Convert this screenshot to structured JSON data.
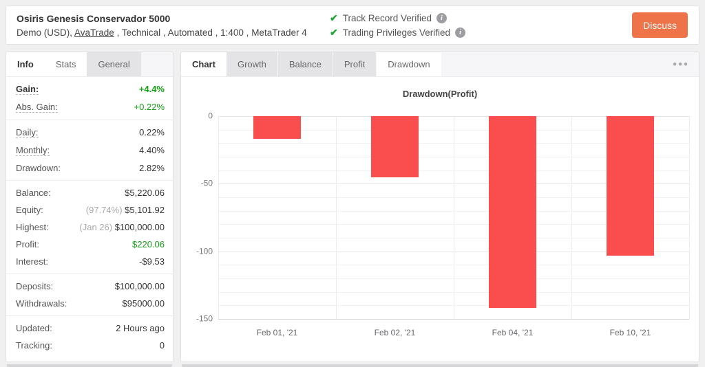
{
  "colors": {
    "accent_orange": "#ee7348",
    "positive_green": "#13a113",
    "check_green": "#23a638",
    "bar_red": "#fa4d4d"
  },
  "header": {
    "title": "Osiris Genesis Conservador 5000",
    "subtitle_prefix": "Demo (USD), ",
    "broker_link": "AvaTrade",
    "subtitle_suffix": " , Technical , Automated , 1:400 , MetaTrader 4",
    "verifications": [
      {
        "label": "Track Record Verified",
        "check_icon": "check-mark",
        "info_icon": "info-circle"
      },
      {
        "label": "Trading Privileges Verified",
        "check_icon": "check-mark",
        "info_icon": "info-circle"
      }
    ],
    "discuss_label": "Discuss"
  },
  "left_panel": {
    "tabs": [
      {
        "label": "Info",
        "state": "active"
      },
      {
        "label": "Stats",
        "state": "plain"
      },
      {
        "label": "General",
        "state": "chip"
      }
    ],
    "groups": [
      {
        "rows": [
          {
            "label": "Gain:",
            "value": "+4.4%",
            "green": true,
            "bold": true,
            "dotted": true
          },
          {
            "label": "Abs. Gain:",
            "value": "+0.22%",
            "green": true,
            "dotted": true
          }
        ]
      },
      {
        "rows": [
          {
            "label": "Daily:",
            "value": "0.22%",
            "dotted": true
          },
          {
            "label": "Monthly:",
            "value": "4.40%",
            "dotted": true
          },
          {
            "label": "Drawdown:",
            "value": "2.82%"
          }
        ]
      },
      {
        "rows": [
          {
            "label": "Balance:",
            "value": "$5,220.06"
          },
          {
            "label": "Equity:",
            "note": "(97.74%) ",
            "value": "$5,101.92"
          },
          {
            "label": "Highest:",
            "note": "(Jan 26) ",
            "value": "$100,000.00"
          },
          {
            "label": "Profit:",
            "value": "$220.06",
            "green": true
          },
          {
            "label": "Interest:",
            "value": "-$9.53"
          }
        ]
      },
      {
        "rows": [
          {
            "label": "Deposits:",
            "value": "$100,000.00"
          },
          {
            "label": "Withdrawals:",
            "value": "$95000.00"
          }
        ]
      },
      {
        "rows": [
          {
            "label": "Updated:",
            "value": "2 Hours ago"
          },
          {
            "label": "Tracking:",
            "value": "0"
          }
        ]
      }
    ]
  },
  "chart_panel": {
    "tabs": [
      {
        "label": "Chart",
        "state": "active"
      },
      {
        "label": "Growth",
        "state": "chip"
      },
      {
        "label": "Balance",
        "state": "chip"
      },
      {
        "label": "Profit",
        "state": "chip"
      },
      {
        "label": "Drawdown",
        "state": "plain"
      }
    ],
    "menu_icon": "ellipsis-horizontal",
    "menu_glyph": "•••"
  },
  "chart_data": {
    "type": "bar",
    "title": "Drawdown(Profit)",
    "categories": [
      "Feb 01, '21",
      "Feb 02, '21",
      "Feb 04, '21",
      "Feb 10, '21"
    ],
    "values": [
      -17,
      -45,
      -142,
      -103
    ],
    "series_name": "Drawdown",
    "xlabel": "",
    "ylabel": "",
    "ylim": [
      -150,
      0
    ],
    "yticks": [
      0,
      -50,
      -100,
      -150
    ],
    "minor_grid_step": 10,
    "grid": true,
    "legend_position": "none",
    "bar_color": "#fa4d4d"
  }
}
